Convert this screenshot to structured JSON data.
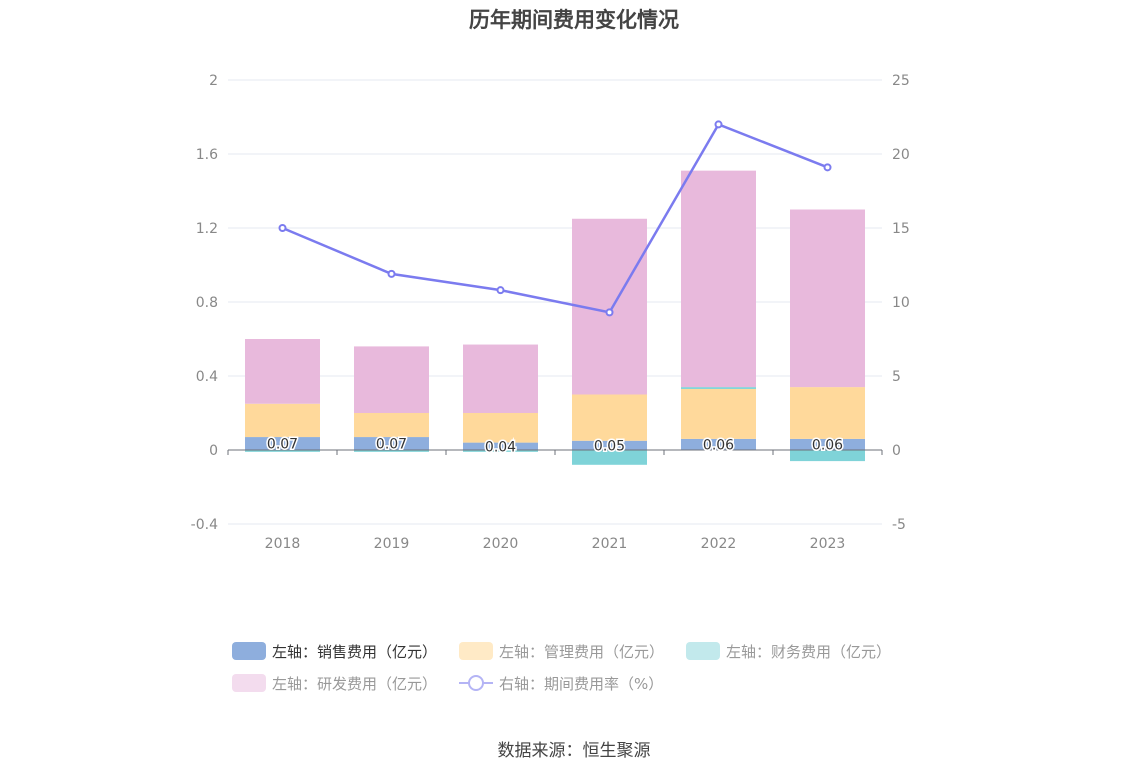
{
  "chart_data": {
    "type": "bar",
    "title": "历年期间费用变化情况",
    "categories": [
      "2018",
      "2019",
      "2020",
      "2021",
      "2022",
      "2023"
    ],
    "stacked": true,
    "left_axis": {
      "ylim": [
        -0.4,
        2
      ],
      "ticks": [
        "2",
        "1.6",
        "1.2",
        "0.8",
        "0.4",
        "0",
        "-0.4"
      ]
    },
    "right_axis": {
      "ylim": [
        -5,
        25
      ],
      "ticks": [
        "25",
        "20",
        "15",
        "10",
        "5",
        "0",
        "-5"
      ]
    },
    "series": [
      {
        "name": "左轴：销售费用（亿元）",
        "type": "bar",
        "axis": "left",
        "color": "#8eaedd",
        "values": [
          0.07,
          0.07,
          0.04,
          0.05,
          0.06,
          0.06
        ],
        "labels": [
          "0.07",
          "0.07",
          "0.04",
          "0.05",
          "0.06",
          "0.06"
        ]
      },
      {
        "name": "左轴：管理费用（亿元）",
        "type": "bar",
        "axis": "left",
        "color": "#ffd99b",
        "values": [
          0.18,
          0.13,
          0.16,
          0.25,
          0.27,
          0.28
        ]
      },
      {
        "name": "左轴：财务费用（亿元）",
        "type": "bar",
        "axis": "left",
        "color": "#7fd3d8",
        "values": [
          -0.01,
          -0.01,
          -0.01,
          -0.08,
          0.01,
          -0.06
        ]
      },
      {
        "name": "左轴：研发费用（亿元）",
        "type": "bar",
        "axis": "left",
        "color": "#e8b9dc",
        "values": [
          0.35,
          0.36,
          0.37,
          0.95,
          1.17,
          0.96
        ]
      },
      {
        "name": "右轴：期间费用率（%）",
        "type": "line",
        "axis": "right",
        "color": "#7b7bef",
        "values": [
          15.0,
          11.9,
          10.8,
          9.3,
          22.0,
          19.1
        ]
      }
    ],
    "grid": true,
    "legend_position": "bottom"
  },
  "source": "数据来源：恒生聚源"
}
